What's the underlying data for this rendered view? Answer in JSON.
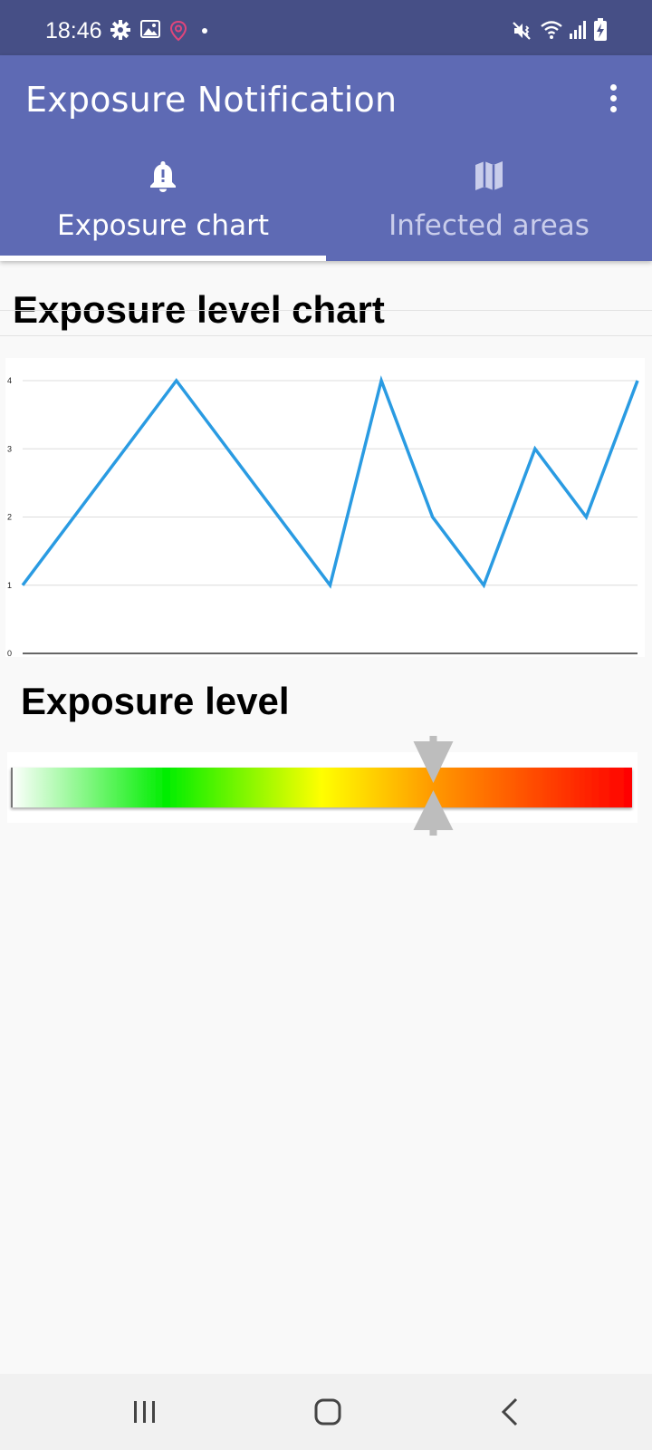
{
  "status_bar": {
    "time": "18:46",
    "left_icons": [
      "gear-icon",
      "image-icon",
      "location-pin-icon",
      "dot-icon"
    ],
    "right_icons": [
      "mute-vibrate-icon",
      "wifi-icon",
      "signal-icon",
      "battery-charging-icon"
    ],
    "accent_pin_color": "#e0457b"
  },
  "app_bar": {
    "title": "Exposure Notification",
    "background_color": "#5e6ab4",
    "tabs": [
      {
        "label": "Exposure chart",
        "icon": "bell-alert-icon",
        "active": true
      },
      {
        "label": "Infected areas",
        "icon": "map-icon",
        "active": false
      }
    ]
  },
  "chart_section": {
    "title": "Exposure level chart"
  },
  "chart_data": {
    "type": "line",
    "title": "",
    "xlabel": "",
    "ylabel": "",
    "ylim": [
      0,
      4
    ],
    "yticks": [
      "0",
      "1",
      "2",
      "3",
      "4"
    ],
    "grid": true,
    "series": [
      {
        "values": [
          1,
          4,
          1,
          4,
          2,
          1,
          3,
          2,
          4
        ],
        "color": "#2a9be2"
      }
    ],
    "x": [
      0,
      3,
      6,
      7,
      8,
      9,
      10,
      11,
      12
    ]
  },
  "level_section": {
    "title": "Exposure level",
    "level_fraction": 0.68,
    "gradient_colors": [
      "#ffffff",
      "#00ee00",
      "#ffff00",
      "#ff9900",
      "#ff0000"
    ],
    "marker_color": "#bdbdbd"
  },
  "nav_bar": {
    "buttons": [
      "recent-apps-icon",
      "home-icon",
      "back-icon"
    ]
  }
}
